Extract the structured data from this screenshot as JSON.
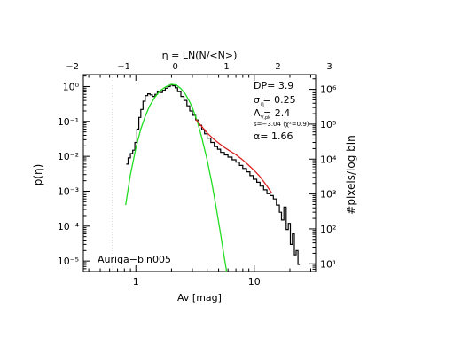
{
  "chart_data": {
    "type": "line",
    "title": "",
    "xlabel": "Av [mag]",
    "ylabel": "p(η)",
    "top_axis_label": "η = LN(N/<N>)",
    "right_axis_label": "#pixels/log bin",
    "x_scale": "log",
    "y_scale": "log",
    "xlim": [
      0.36,
      33
    ],
    "ylim": [
      5e-06,
      2.2
    ],
    "x_ticks": [
      {
        "value": 1,
        "label": "1"
      },
      {
        "value": 10,
        "label": "10"
      }
    ],
    "y_ticks": [
      {
        "value": 1,
        "label": "10⁰"
      },
      {
        "value": 0.1,
        "label": "10⁻¹"
      },
      {
        "value": 0.01,
        "label": "10⁻²"
      },
      {
        "value": 0.001,
        "label": "10⁻³"
      },
      {
        "value": 0.0001,
        "label": "10⁻⁴"
      },
      {
        "value": 1e-05,
        "label": "10⁻⁵"
      }
    ],
    "top_ticks": [
      {
        "value": -2,
        "label": "−2"
      },
      {
        "value": -1,
        "label": "−1"
      },
      {
        "value": 0,
        "label": "0"
      },
      {
        "value": 1,
        "label": "1"
      },
      {
        "value": 2,
        "label": "2"
      },
      {
        "value": 3,
        "label": "3"
      }
    ],
    "right_ticks": [
      {
        "value": 1000000,
        "label": "10⁶"
      },
      {
        "value": 100000,
        "label": "10⁵"
      },
      {
        "value": 10000,
        "label": "10⁴"
      },
      {
        "value": 1000,
        "label": "10³"
      },
      {
        "value": 100,
        "label": "10²"
      },
      {
        "value": 10,
        "label": "10¹"
      }
    ],
    "annotations": {
      "dp": "DP= 3.9",
      "sigma": "σ  = 0.25",
      "sigma_sub": "η",
      "asub": "A     = 2.4",
      "asub_sub": "V,pk",
      "slope": "s=−3.04 (χ²=0.9)",
      "alpha": "α= 1.66",
      "region": "Auriga−bin005"
    },
    "series": [
      {
        "color": "#000000",
        "style": "step",
        "x": [
          0.83,
          0.86,
          0.9,
          0.94,
          0.98,
          1.02,
          1.06,
          1.1,
          1.15,
          1.2,
          1.26,
          1.32,
          1.38,
          1.45,
          1.52,
          1.6,
          1.68,
          1.77,
          1.86,
          1.95,
          2.05,
          2.15,
          2.25,
          2.4,
          2.55,
          2.7,
          2.85,
          3.0,
          3.2,
          3.4,
          3.6,
          3.8,
          4.0,
          4.3,
          4.6,
          4.9,
          5.2,
          5.6,
          6.0,
          6.5,
          7.0,
          7.5,
          8.0,
          8.6,
          9.2,
          9.8,
          10.5,
          11.2,
          12.0,
          12.8,
          13.6,
          14.5,
          15.4,
          16.3,
          17.0,
          17.8,
          18.6,
          19.4,
          20.2,
          21.0,
          21.8,
          22.6,
          23.4
        ],
        "y": [
          0.006,
          0.009,
          0.012,
          0.015,
          0.025,
          0.06,
          0.13,
          0.22,
          0.38,
          0.55,
          0.62,
          0.58,
          0.52,
          0.6,
          0.7,
          0.68,
          0.78,
          0.9,
          1.0,
          1.1,
          1.05,
          0.92,
          0.72,
          0.52,
          0.4,
          0.28,
          0.2,
          0.15,
          0.11,
          0.078,
          0.058,
          0.044,
          0.033,
          0.025,
          0.019,
          0.016,
          0.013,
          0.011,
          0.0095,
          0.008,
          0.0068,
          0.0055,
          0.0045,
          0.0036,
          0.0028,
          0.0022,
          0.0018,
          0.0014,
          0.0011,
          0.00085,
          0.00075,
          0.0006,
          0.0004,
          0.00025,
          0.00015,
          0.00035,
          8e-05,
          0.00012,
          3e-05,
          6e-05,
          1.5e-05,
          2e-05,
          8e-06
        ]
      },
      {
        "color": "#22dd22",
        "style": "line",
        "x": [
          0.82,
          0.9,
          1.0,
          1.1,
          1.2,
          1.3,
          1.45,
          1.6,
          1.8,
          2.0,
          2.2,
          2.4,
          2.6,
          2.8,
          3.0,
          3.3,
          3.6,
          4.0,
          4.4,
          4.8,
          5.2,
          5.6,
          6.0,
          6.3
        ],
        "y": [
          0.0004,
          0.003,
          0.017,
          0.06,
          0.14,
          0.27,
          0.5,
          0.76,
          1.0,
          1.16,
          1.1,
          0.88,
          0.63,
          0.41,
          0.25,
          0.1,
          0.035,
          0.008,
          0.0016,
          0.0003,
          6e-05,
          1.2e-05,
          3e-06,
          1.2e-06
        ]
      },
      {
        "color": "#dd2222",
        "style": "line",
        "x": [
          3.2,
          3.6,
          4.0,
          4.5,
          5.0,
          5.6,
          6.3,
          7.0,
          8.0,
          9.0,
          10.0,
          11.0,
          12.0,
          13.0,
          14.0
        ],
        "y": [
          0.115,
          0.072,
          0.047,
          0.032,
          0.024,
          0.018,
          0.0138,
          0.0112,
          0.0079,
          0.0055,
          0.0039,
          0.0028,
          0.0019,
          0.0013,
          0.0009
        ]
      }
    ]
  }
}
